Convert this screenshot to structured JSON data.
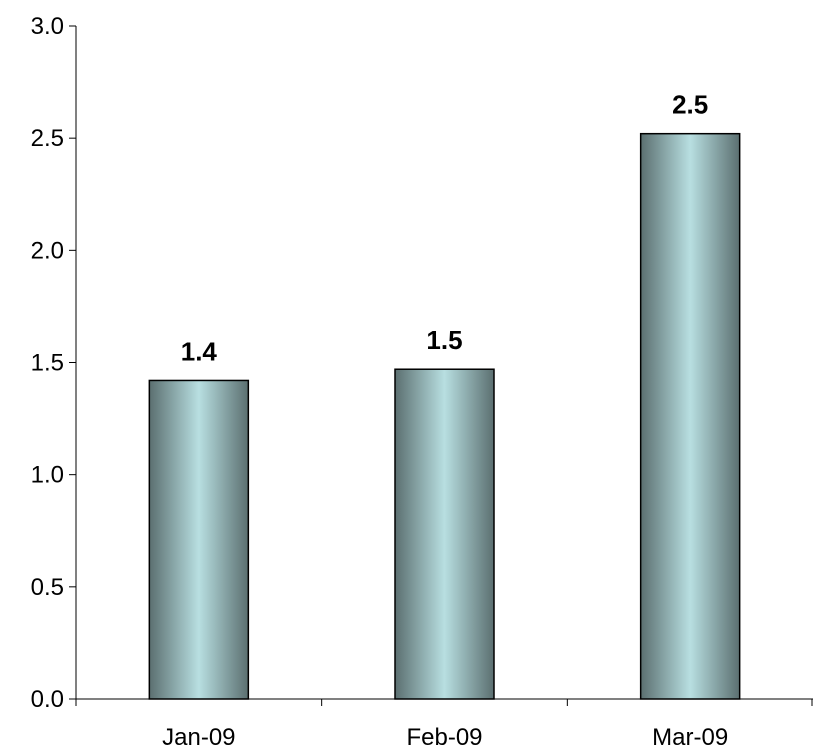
{
  "chart_data": {
    "type": "bar",
    "categories": [
      "Jan-09",
      "Feb-09",
      "Mar-09"
    ],
    "values": [
      1.42,
      1.47,
      2.52
    ],
    "data_labels": [
      "1.4",
      "1.5",
      "2.5"
    ],
    "ylim": [
      0,
      3
    ],
    "y_ticks": [
      "0.0",
      "0.5",
      "1.0",
      "1.5",
      "2.0",
      "2.5",
      "3.0"
    ],
    "y_tick_values": [
      0,
      0.5,
      1,
      1.5,
      2,
      2.5,
      3
    ],
    "title": "",
    "xlabel": "",
    "ylabel": "",
    "grid": false,
    "legend": "none",
    "colors": {
      "bar_edge": "#5b6f70",
      "bar_center": "#b8dfe1",
      "bar_outline": "#000000",
      "axis": "#000000"
    }
  }
}
